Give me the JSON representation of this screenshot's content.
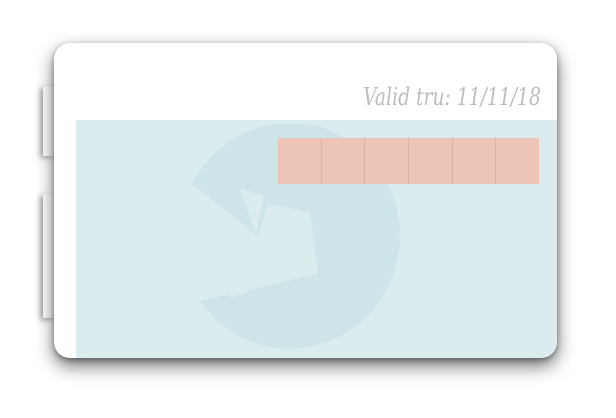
{
  "card": {
    "valid_text": "Valid tru: 11/11/18",
    "code_cells": [
      "",
      "",
      "",
      "",
      "",
      ""
    ]
  },
  "colors": {
    "card_bg": "#ffffff",
    "panel_bg": "#dbecee",
    "watermark": "#cde5e8",
    "cells_bg": "#ecc5b7",
    "text": "#bdbdbd"
  },
  "icons": {
    "watermark": "pacman-emblem-icon"
  }
}
